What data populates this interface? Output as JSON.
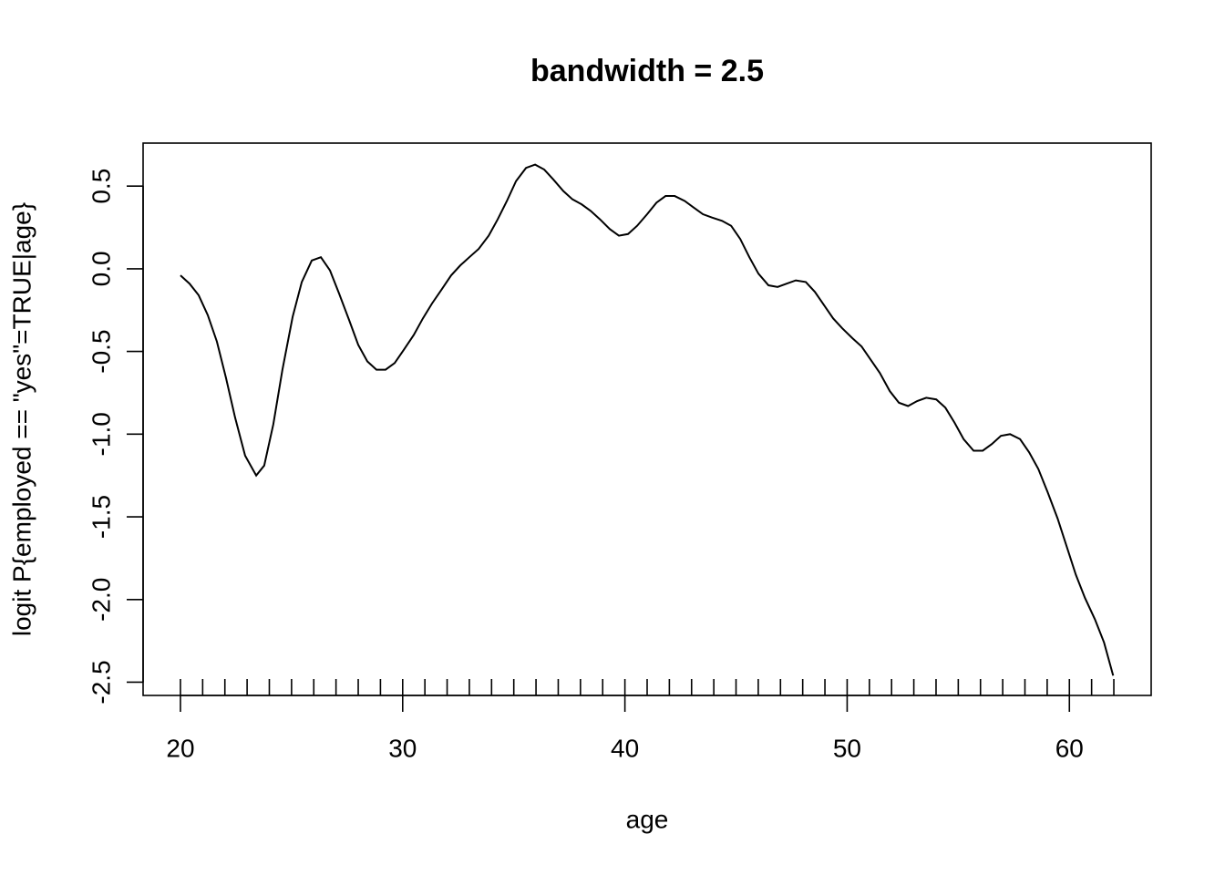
{
  "chart_data": {
    "type": "line",
    "title": "bandwidth = 2.5",
    "xlabel": "age",
    "ylabel": "logit P{employed == \"yes\"=TRUE|age}",
    "x": [
      20,
      20.41,
      20.82,
      21.23,
      21.64,
      22.05,
      22.46,
      22.91,
      23.41,
      23.77,
      24.18,
      24.59,
      25.05,
      25.46,
      25.91,
      26.32,
      26.73,
      27.14,
      27.59,
      28.0,
      28.41,
      28.82,
      29.23,
      29.64,
      30.05,
      30.5,
      30.91,
      31.32,
      31.73,
      32.18,
      32.59,
      33.0,
      33.42,
      33.87,
      34.28,
      34.69,
      35.1,
      35.55,
      35.96,
      36.37,
      36.78,
      37.23,
      37.64,
      38.05,
      38.46,
      38.87,
      39.32,
      39.73,
      40.14,
      40.55,
      41.0,
      41.42,
      41.83,
      42.24,
      42.69,
      43.1,
      43.51,
      43.92,
      44.37,
      44.78,
      45.19,
      45.6,
      46.01,
      46.46,
      46.87,
      47.28,
      47.69,
      48.14,
      48.55,
      48.96,
      49.37,
      49.78,
      50.24,
      50.65,
      51.06,
      51.47,
      51.92,
      52.33,
      52.74,
      53.15,
      53.56,
      54.01,
      54.42,
      54.83,
      55.24,
      55.69,
      56.1,
      56.51,
      56.92,
      57.33,
      57.78,
      58.19,
      58.6,
      59.02,
      59.47,
      59.88,
      60.29,
      60.7,
      61.15,
      61.56,
      61.97
    ],
    "series": [
      {
        "color": "#000000",
        "values": [
          -0.04,
          -0.09,
          -0.16,
          -0.28,
          -0.44,
          -0.66,
          -0.9,
          -1.13,
          -1.25,
          -1.19,
          -0.94,
          -0.61,
          -0.29,
          -0.08,
          0.05,
          0.07,
          -0.01,
          -0.15,
          -0.31,
          -0.46,
          -0.56,
          -0.61,
          -0.61,
          -0.57,
          -0.49,
          -0.4,
          -0.3,
          -0.21,
          -0.13,
          -0.04,
          0.02,
          0.07,
          0.12,
          0.2,
          0.3,
          0.41,
          0.53,
          0.61,
          0.63,
          0.6,
          0.54,
          0.47,
          0.42,
          0.39,
          0.35,
          0.3,
          0.24,
          0.2,
          0.21,
          0.26,
          0.33,
          0.4,
          0.44,
          0.44,
          0.41,
          0.37,
          0.33,
          0.31,
          0.29,
          0.26,
          0.18,
          0.07,
          -0.03,
          -0.1,
          -0.11,
          -0.09,
          -0.07,
          -0.08,
          -0.14,
          -0.22,
          -0.3,
          -0.36,
          -0.42,
          -0.47,
          -0.55,
          -0.63,
          -0.74,
          -0.81,
          -0.83,
          -0.8,
          -0.78,
          -0.79,
          -0.84,
          -0.93,
          -1.03,
          -1.1,
          -1.1,
          -1.06,
          -1.01,
          -1.0,
          -1.03,
          -1.11,
          -1.21,
          -1.35,
          -1.51,
          -1.68,
          -1.85,
          -1.99,
          -2.12,
          -2.26,
          -2.46
        ]
      }
    ],
    "rug": [
      20,
      21,
      22,
      23,
      24,
      25,
      26,
      27,
      28,
      29,
      30,
      31,
      32,
      33,
      34,
      35,
      36,
      37,
      38,
      39,
      40,
      41,
      42,
      43,
      44,
      45,
      46,
      47,
      48,
      49,
      50,
      51,
      52,
      53,
      54,
      55,
      56,
      57,
      58,
      59,
      60,
      61,
      62
    ],
    "xlim": [
      18.32,
      63.68
    ],
    "ylim": [
      -2.58,
      0.76
    ],
    "xticks": [
      20,
      30,
      40,
      50,
      60
    ],
    "yticks": [
      -2.5,
      {
        "value": -2,
        "label": "-2.0"
      },
      -1.5,
      {
        "value": -1,
        "label": "-1.0"
      },
      -0.5,
      {
        "value": 0,
        "label": "0.0"
      },
      0.5
    ]
  }
}
